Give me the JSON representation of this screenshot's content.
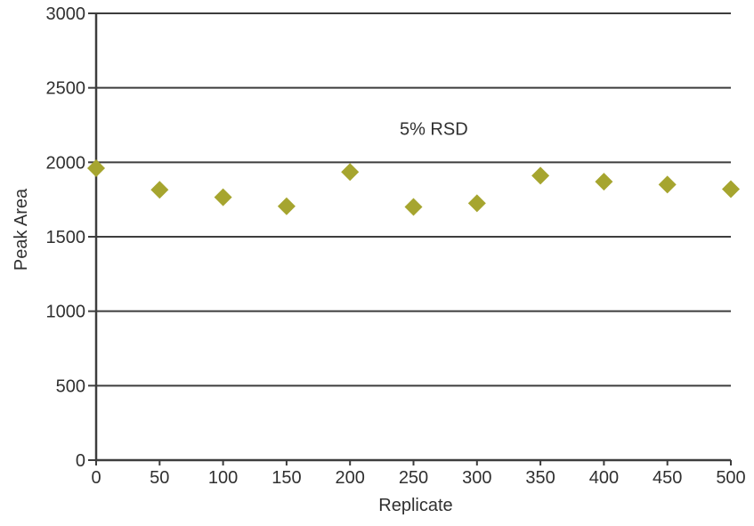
{
  "figure": {
    "background": "#ffffff"
  },
  "chart_data": {
    "type": "scatter",
    "title": "",
    "xlabel": "Replicate",
    "ylabel": "Peak Area",
    "annotation": {
      "text": "5% RSD",
      "x": 266,
      "y": 2225
    },
    "x": [
      0,
      50,
      100,
      150,
      200,
      250,
      300,
      350,
      400,
      450,
      500
    ],
    "series": [
      {
        "name": "Peak Area",
        "values": [
          1960,
          1815,
          1765,
          1705,
          1935,
          1700,
          1725,
          1910,
          1870,
          1850,
          1820
        ]
      }
    ],
    "xlim": [
      0,
      500
    ],
    "ylim": [
      0,
      3000
    ],
    "x_ticks": [
      0,
      50,
      100,
      150,
      200,
      250,
      300,
      350,
      400,
      450,
      500
    ],
    "y_ticks": [
      0,
      500,
      1000,
      1500,
      2000,
      2500,
      3000
    ],
    "grid": "horizontal",
    "legend": "none",
    "marker": {
      "shape": "diamond",
      "color": "#a6a52f",
      "size": 20
    },
    "axis_color": "#3d3d3d",
    "text_color": "#303030",
    "tick_font_size": 20,
    "label_font_size": 20
  }
}
